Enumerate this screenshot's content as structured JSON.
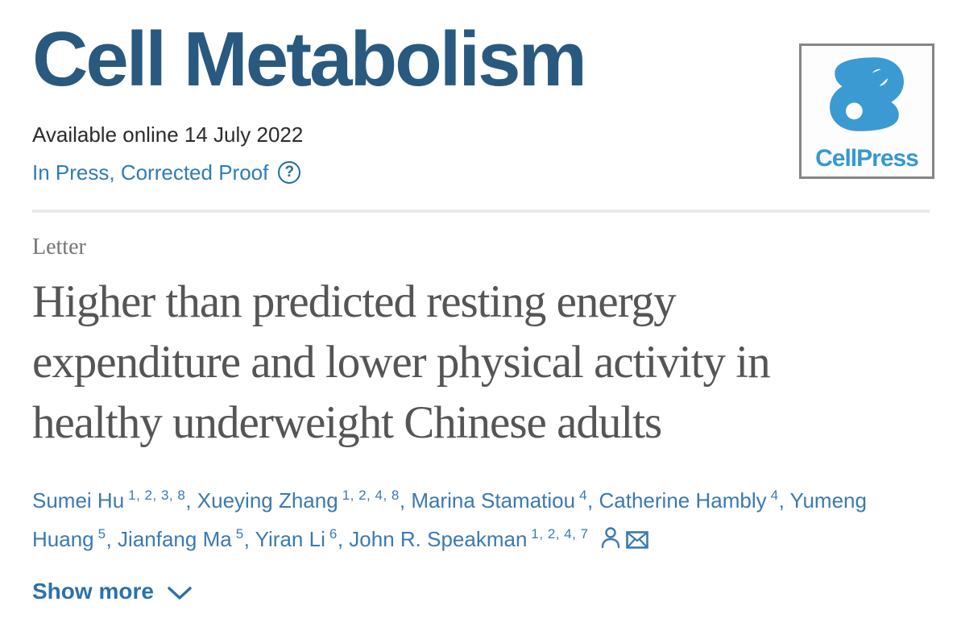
{
  "journal": {
    "name": "Cell Metabolism",
    "available_online": "Available online 14 July 2022",
    "status_link": "In Press, Corrected Proof"
  },
  "publisher": {
    "logo_text": "CellPress"
  },
  "article": {
    "type_label": "Letter",
    "title": "Higher than predicted resting energy expenditure and lower physical activity in healthy underweight Chinese adults",
    "title_lines": [
      "Higher than predicted resting energy",
      "expenditure and lower physical activity in",
      "healthy underweight Chinese adults"
    ]
  },
  "authors": [
    {
      "name": "Sumei Hu",
      "sup": "1, 2, 3, 8"
    },
    {
      "name": "Xueying Zhang",
      "sup": "1, 2, 4, 8"
    },
    {
      "name": "Marina Stamatiou",
      "sup": "4"
    },
    {
      "name": "Catherine Hambly",
      "sup": "4"
    },
    {
      "name": "Yumeng Huang",
      "sup": "5"
    },
    {
      "name": "Jianfang Ma",
      "sup": "5"
    },
    {
      "name": "Yiran Li",
      "sup": "6"
    },
    {
      "name": "John R. Speakman",
      "sup": "1, 2, 4, 7"
    }
  ],
  "icons": {
    "help_glyph": "?",
    "help": "question-mark-circle",
    "person": "person-outline",
    "email": "envelope",
    "chevron": "chevron-down"
  },
  "actions": {
    "show_more_label": "Show more"
  },
  "colors": {
    "journal_title": "#29597f",
    "link_blue": "#2e7cb5",
    "author_blue": "#3b79b0",
    "show_more_blue": "#2c71ad",
    "help_icon": "#1f7099",
    "logo_blue": "#3a9ad1",
    "title_gray": "#555555",
    "type_gray": "#757575",
    "divider_gray": "#e9e9e9"
  }
}
